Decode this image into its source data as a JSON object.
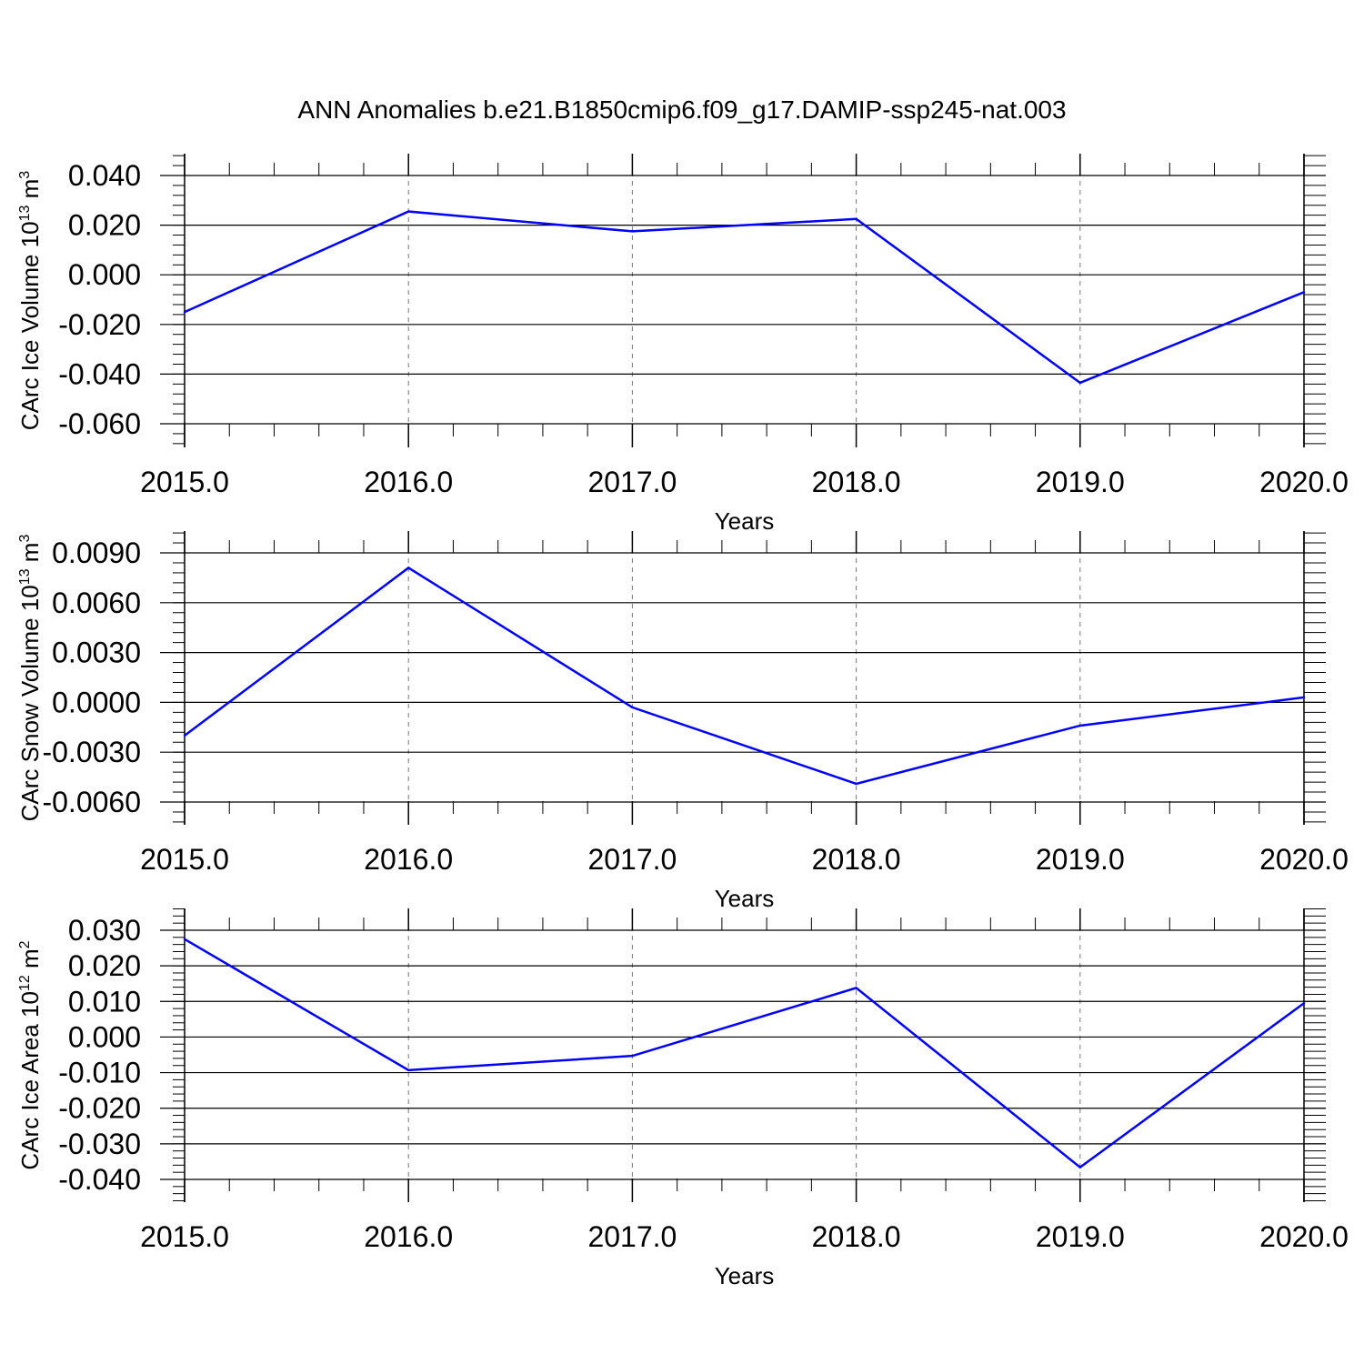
{
  "title": "ANN Anomalies b.e21.B1850cmip6.f09_g17.DAMIP-ssp245-nat.003",
  "colors": {
    "line": "#0000ff",
    "axis": "#000000",
    "grid": "#777777"
  },
  "chart_data": [
    {
      "type": "line",
      "xlabel": "Years",
      "ylabel": "CArc Ice Volume 10",
      "ylabel_unit": "m",
      "ylabel_exp": "13",
      "ylabel_unit_exp": "3",
      "x": [
        2015,
        2016,
        2017,
        2018,
        2019,
        2020
      ],
      "xlim": [
        2015,
        2020
      ],
      "xticks": [
        "2015.0",
        "2016.0",
        "2017.0",
        "2018.0",
        "2019.0",
        "2020.0"
      ],
      "ylim": [
        -0.06,
        0.05
      ],
      "yticks": [
        0.04,
        0.02,
        0.0,
        -0.02,
        -0.04,
        -0.06
      ],
      "yticklabels": [
        "0.040",
        "0.020",
        "0.000",
        "-0.020",
        "-0.040",
        "-0.060"
      ],
      "y_minor_step": 0.004,
      "values": [
        -0.015,
        0.0255,
        0.0175,
        0.0225,
        -0.0435,
        -0.007
      ],
      "vertical_grid": "dashed"
    },
    {
      "type": "line",
      "xlabel": "Years",
      "ylabel": "CArc Snow Volume 10",
      "ylabel_unit": "m",
      "ylabel_exp": "13",
      "ylabel_unit_exp": "3",
      "x": [
        2015,
        2016,
        2017,
        2018,
        2019,
        2020
      ],
      "xlim": [
        2015,
        2020
      ],
      "xticks": [
        "2015.0",
        "2016.0",
        "2017.0",
        "2018.0",
        "2019.0",
        "2020.0"
      ],
      "ylim": [
        -0.006,
        0.0104
      ],
      "yticks": [
        0.009,
        0.006,
        0.003,
        0.0,
        -0.003,
        -0.006
      ],
      "yticklabels": [
        "0.0090",
        "0.0060",
        "0.0030",
        "0.0000",
        "-0.0030",
        "-0.0060"
      ],
      "y_minor_step": 0.0006,
      "values": [
        -0.002,
        0.0081,
        -0.0003,
        -0.0049,
        -0.0014,
        0.0003
      ],
      "vertical_grid": "dashed"
    },
    {
      "type": "line",
      "xlabel": "Years",
      "ylabel": "CArc Ice Area 10",
      "ylabel_unit": "m",
      "ylabel_exp": "12",
      "ylabel_unit_exp": "2",
      "x": [
        2015,
        2016,
        2017,
        2018,
        2019,
        2020
      ],
      "xlim": [
        2015,
        2020
      ],
      "xticks": [
        "2015.0",
        "2016.0",
        "2017.0",
        "2018.0",
        "2019.0",
        "2020.0"
      ],
      "ylim": [
        -0.04,
        0.0367
      ],
      "yticks": [
        0.03,
        0.02,
        0.01,
        0.0,
        -0.01,
        -0.02,
        -0.03,
        -0.04
      ],
      "yticklabels": [
        "0.030",
        "0.020",
        "0.010",
        "0.000",
        "-0.010",
        "-0.020",
        "-0.030",
        "-0.040"
      ],
      "y_minor_step": 0.002,
      "values": [
        0.0275,
        -0.0093,
        -0.0053,
        0.0138,
        -0.0366,
        0.0095
      ],
      "vertical_grid": "dashed"
    }
  ]
}
